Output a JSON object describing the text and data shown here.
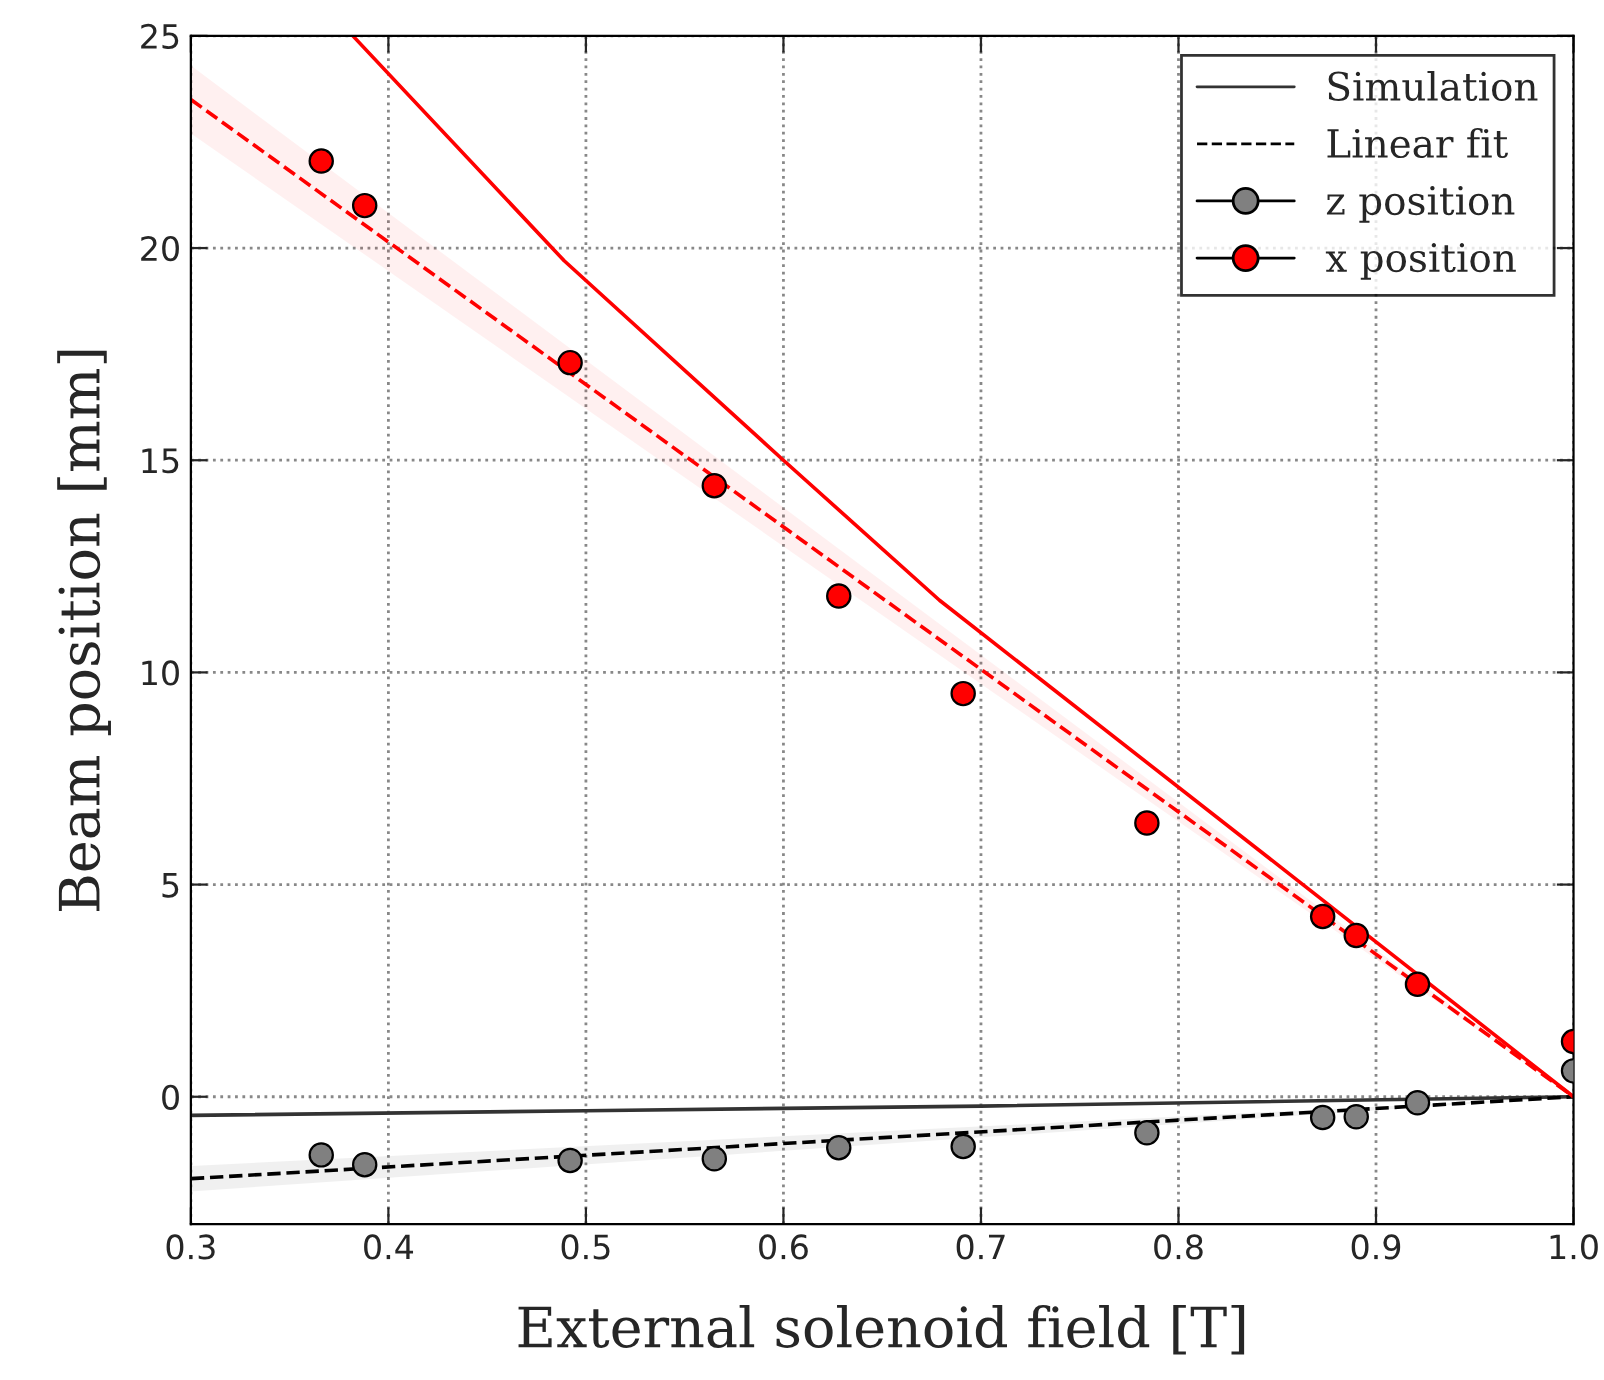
{
  "chart_data": {
    "type": "scatter",
    "xlabel": "External solenoid field [T]",
    "ylabel": "Beam position [mm]",
    "xlim": [
      0.3,
      1.0
    ],
    "ylim": [
      -3,
      25
    ],
    "xticks": [
      0.3,
      0.4,
      0.5,
      0.6,
      0.7,
      0.8,
      0.9,
      {
        "value": 1,
        "label": "1.0"
      }
    ],
    "yticks": [
      0,
      5,
      10,
      15,
      20,
      25
    ],
    "grid": true,
    "legend": "top right",
    "series": [
      {
        "name": "Simulation",
        "type": "line",
        "line_style": "solid",
        "color": "#333333",
        "x": [
          0.3,
          0.5,
          0.7,
          1.0
        ],
        "values": [
          -0.44,
          -0.33,
          -0.22,
          0
        ]
      },
      {
        "name": "Linear fit",
        "type": "line",
        "line_style": "dashed",
        "color": "#000000",
        "x": [
          0.3,
          1.0
        ],
        "values": [
          -1.93,
          0
        ],
        "lower": [
          -2.23,
          0
        ],
        "upper": [
          -1.63,
          0
        ]
      },
      {
        "name": "z position",
        "marker": "circle",
        "color": "#808080",
        "x": [
          0.366,
          0.388,
          0.492,
          0.565,
          0.628,
          0.691,
          0.784,
          0.873,
          0.89,
          0.921,
          1.0
        ],
        "values": [
          -1.37,
          -1.6,
          -1.5,
          -1.46,
          -1.2,
          -1.17,
          -0.85,
          -0.49,
          -0.47,
          -0.14,
          0.61
        ]
      },
      {
        "name": "x position",
        "marker": "circle",
        "color": "#ff0000",
        "x": [
          0.366,
          0.388,
          0.492,
          0.565,
          0.628,
          0.691,
          0.784,
          0.873,
          0.89,
          0.921,
          1.0
        ],
        "values": [
          22.05,
          21.0,
          17.3,
          14.4,
          11.8,
          9.5,
          6.45,
          4.25,
          3.8,
          2.65,
          1.3
        ]
      },
      {
        "type": "line",
        "line_style": "solid",
        "color": "#ff0000",
        "x": [
          0.382,
          0.489,
          0.6,
          0.679,
          0.863,
          1.0
        ],
        "values": [
          25,
          19.7,
          15.0,
          11.7,
          5.0,
          0
        ]
      },
      {
        "type": "line",
        "line_style": "dashed",
        "color": "#ff0000",
        "x": [
          0.3,
          1.0
        ],
        "values": [
          23.5,
          0
        ],
        "lower": [
          22.7,
          0
        ],
        "upper": [
          24.3,
          0
        ]
      }
    ]
  }
}
